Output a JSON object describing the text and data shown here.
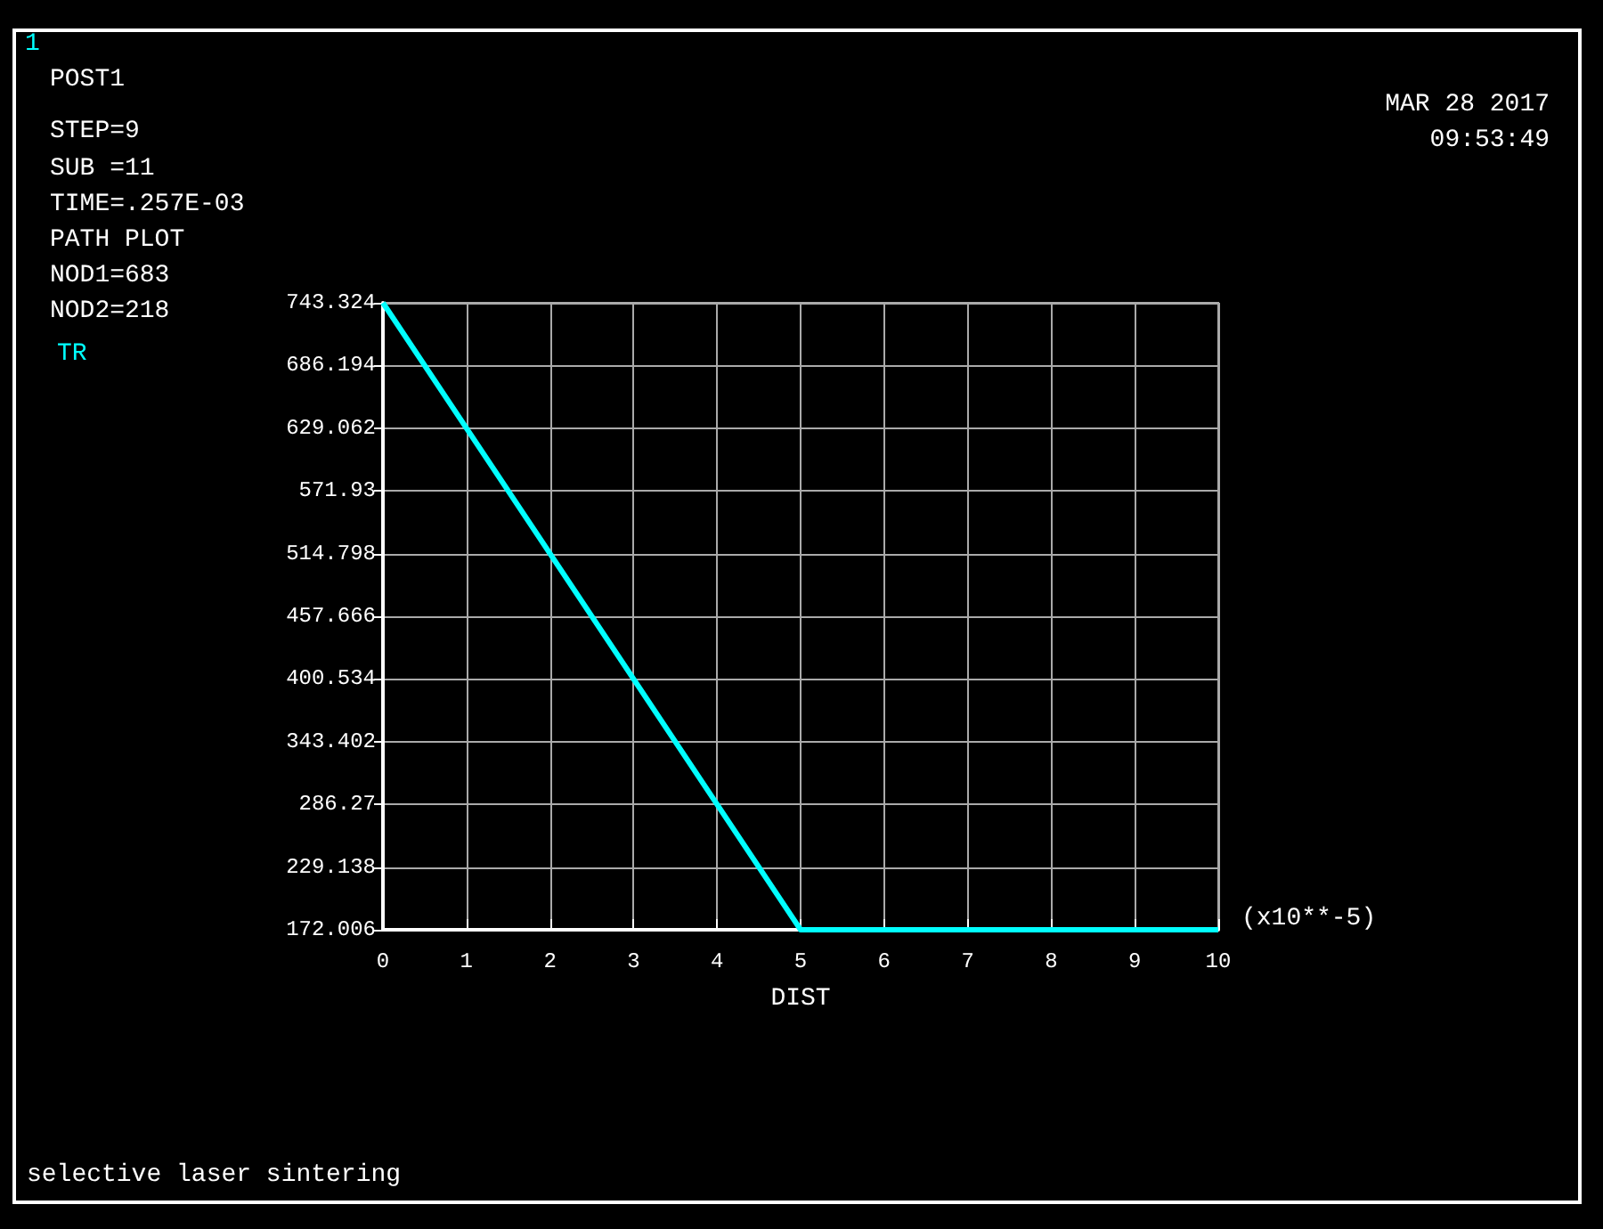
{
  "chart_data": {
    "type": "line",
    "xlabel": "DIST",
    "annotations": [
      "1",
      "POST1",
      "STEP=9",
      "SUB =11",
      "TIME=.257E-03",
      "PATH PLOT",
      "NOD1=683",
      "NOD2=218",
      "MAR 28 2017",
      "09:53:49",
      "(x10**-5)",
      "selective laser sintering"
    ],
    "x": [
      0,
      5,
      10
    ],
    "series": [
      {
        "name": "TR",
        "color": "#00ffff",
        "values": [
          743.324,
          172.006,
          172.006
        ]
      }
    ],
    "xlim": [
      0,
      10
    ],
    "xticks": [
      0,
      1,
      2,
      3,
      4,
      5,
      6,
      7,
      8,
      9,
      10
    ],
    "ylim": [
      172.006,
      743.324
    ],
    "yticks": [
      172.006,
      229.138,
      286.27,
      343.402,
      400.534,
      457.666,
      514.798,
      571.93,
      629.062,
      686.194,
      743.324
    ],
    "grid": true,
    "legend": "top left",
    "marker": "none",
    "line_style": "solid"
  }
}
